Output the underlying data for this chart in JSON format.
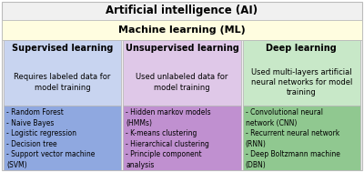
{
  "title": "Artificial intelligence (AI)",
  "ml_label": "Machine learning (ML)",
  "outer_bg": "#f0f0f0",
  "ml_bg": "#fffde0",
  "col_headers": [
    "Supervised learning",
    "Unsupervised learning",
    "Deep learning"
  ],
  "col_descriptions": [
    "Requires labeled data for\nmodel training",
    "Used unlabeled data for\nmodel training",
    "Used multi-layers artificial\nneural networks for model\ntraining"
  ],
  "col_list_items": [
    "- Random Forest\n- Naive Bayes\n- Logistic regression\n- Decision tree\n- Support vector machine\n(SVM)",
    "- Hidden markov models\n(HMMs)\n- K-means clustering\n- Hierarchical clustering\n- Principle component\nanalysis",
    "- Convolutional neural\nnetwork (CNN)\n- Recurrent neural network\n(RNN)\n- Deep Boltzmann machine\n(DBN)"
  ],
  "col_header_bg": [
    "#c8d4f0",
    "#dfc8e8",
    "#c8e8c8"
  ],
  "col_list_bg": [
    "#8fa8e0",
    "#c090d0",
    "#90c890"
  ],
  "border_color": "#bbbbbb",
  "title_fontsize": 8.5,
  "ml_fontsize": 8.0,
  "header_fontsize": 7.0,
  "desc_fontsize": 6.0,
  "list_fontsize": 5.5,
  "fig_width": 4.0,
  "fig_height": 1.89
}
